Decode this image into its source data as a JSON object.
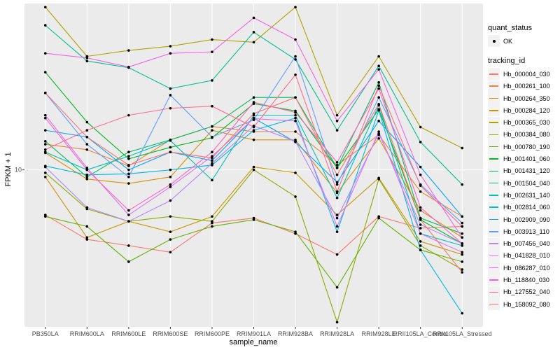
{
  "chart_data": {
    "type": "line",
    "title": "",
    "xlabel": "sample_name",
    "ylabel": "FPKM + 1",
    "y_scale": "log10",
    "y_ticks": [
      10
    ],
    "y_tick_labels": [
      "10-"
    ],
    "ylim": [
      2.0,
      55
    ],
    "grid": true,
    "legend_position": "right",
    "categories": [
      "PB350LA",
      "RRIM600LA",
      "RRIM600LE",
      "RRIM600SE",
      "RRIM600PE",
      "RRIM901LA",
      "RRIM928BA",
      "RRIM928LA",
      "RRIM928LE",
      "RRII105LA_Control",
      "RRII105LA_Stressed"
    ],
    "legends": {
      "quant_status": {
        "title": "quant_status",
        "entries": [
          "OK"
        ]
      },
      "tracking_id": {
        "title": "tracking_id"
      }
    },
    "series": [
      {
        "name": "Hb_000004_030",
        "color": "#F8766D",
        "values": [
          6.3,
          4.9,
          4.6,
          4.3,
          5.8,
          6.1,
          5.2,
          4.2,
          6.2,
          5.5,
          5.6
        ]
      },
      {
        "name": "Hb_000261_100",
        "color": "#EC8239",
        "values": [
          13.0,
          12.3,
          10.4,
          13.6,
          15.6,
          14.8,
          14.8,
          10.5,
          14.3,
          8.0,
          6.2
        ]
      },
      {
        "name": "Hb_000264_350",
        "color": "#DB8E00",
        "values": [
          11.9,
          9.1,
          8.7,
          9.3,
          15.0,
          13.6,
          13.6,
          7.9,
          13.8,
          6.6,
          5.0
        ]
      },
      {
        "name": "Hb_000284_120",
        "color": "#C79800",
        "values": [
          9.3,
          5.0,
          5.9,
          5.3,
          6.2,
          10.3,
          9.7,
          6.3,
          9.2,
          4.8,
          4.2
        ]
      },
      {
        "name": "Hb_000365_030",
        "color": "#AEA200",
        "values": [
          53.0,
          32.0,
          34.0,
          35.5,
          38.0,
          37.0,
          53.0,
          17.5,
          32.0,
          15.5,
          12.5
        ]
      },
      {
        "name": "Hb_000384_080",
        "color": "#8FAA00",
        "values": [
          9.7,
          6.7,
          5.9,
          6.2,
          5.9,
          10.0,
          7.6,
          2.1,
          9.1,
          4.6,
          3.6
        ]
      },
      {
        "name": "Hb_000780_190",
        "color": "#64B200",
        "values": [
          6.2,
          5.6,
          3.9,
          4.9,
          5.6,
          6.0,
          5.3,
          3.0,
          6.1,
          4.4,
          3.9
        ]
      },
      {
        "name": "Hb_001401_060",
        "color": "#00B81F",
        "values": [
          27.2,
          16.3,
          11.2,
          12.6,
          13.9,
          19.7,
          18.3,
          10.2,
          18.6,
          6.0,
          4.7
        ]
      },
      {
        "name": "Hb_001431_120",
        "color": "#00BD5C",
        "values": [
          13.4,
          9.3,
          12.0,
          13.6,
          15.6,
          21.0,
          21.0,
          10.2,
          24.5,
          6.1,
          5.2
        ]
      },
      {
        "name": "Hb_001504_040",
        "color": "#00C08E",
        "values": [
          44.0,
          30.5,
          28.5,
          23.0,
          25.0,
          41.0,
          31.0,
          15.0,
          29.0,
          13.3,
          8.6
        ]
      },
      {
        "name": "Hb_002631_140",
        "color": "#00BFB9",
        "values": [
          12.0,
          10.0,
          11.5,
          13.5,
          9.0,
          17.5,
          17.5,
          7.5,
          19.4,
          5.2,
          4.6
        ]
      },
      {
        "name": "Hb_002814_060",
        "color": "#00B7E4",
        "values": [
          10.4,
          9.5,
          9.6,
          10.0,
          10.5,
          15.0,
          17.0,
          5.3,
          18.4,
          4.4,
          2.3
        ]
      },
      {
        "name": "Hb_002909_090",
        "color": "#00A5FF",
        "values": [
          15.0,
          14.0,
          10.0,
          12.0,
          11.0,
          17.0,
          13.3,
          8.8,
          16.5,
          10.3,
          6.2
        ]
      },
      {
        "name": "Hb_003913_110",
        "color": "#619CFF",
        "values": [
          22.0,
          13.0,
          9.3,
          21.5,
          14.0,
          16.7,
          32.0,
          8.6,
          21.0,
          8.6,
          5.8
        ]
      },
      {
        "name": "Hb_007456_040",
        "color": "#B385FF",
        "values": [
          10.3,
          6.8,
          5.9,
          7.3,
          10.7,
          15.7,
          13.4,
          6.1,
          14.5,
          5.7,
          4.7
        ]
      },
      {
        "name": "Hb_041828_010",
        "color": "#DB72FB",
        "values": [
          17.5,
          10.2,
          6.3,
          8.4,
          11.5,
          16.9,
          16.5,
          5.6,
          14.8,
          5.2,
          4.3
        ]
      },
      {
        "name": "Hb_086287_010",
        "color": "#F564E3",
        "values": [
          33.0,
          31.5,
          28.7,
          33.0,
          33.5,
          47.5,
          38.0,
          16.5,
          28.0,
          9.5,
          5.0
        ]
      },
      {
        "name": "Hb_118840_030",
        "color": "#FF61C3",
        "values": [
          17.0,
          10.0,
          6.6,
          8.6,
          12.0,
          20.0,
          18.0,
          10.8,
          23.0,
          6.8,
          4.7
        ]
      },
      {
        "name": "Hb_127552_040",
        "color": "#FF6C91",
        "values": [
          12.3,
          15.0,
          17.5,
          18.8,
          19.2,
          15.5,
          26.5,
          8.0,
          23.7,
          8.5,
          5.6
        ]
      },
      {
        "name": "Hb_158092_080",
        "color": "#F8766D",
        "values": [
          22.0,
          14.0,
          10.5,
          12.0,
          11.3,
          17.8,
          21.0,
          9.5,
          19.6,
          6.0,
          3.5
        ]
      }
    ]
  }
}
